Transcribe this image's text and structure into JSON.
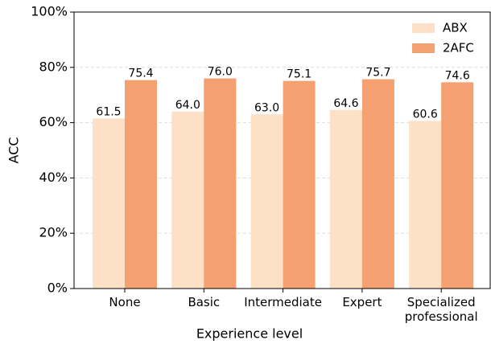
{
  "chart_data": {
    "type": "bar",
    "xlabel": "Experience level",
    "ylabel": "ACC",
    "categories": [
      "None",
      "Basic",
      "Intermediate",
      "Expert",
      "Specialized professional"
    ],
    "series": [
      {
        "name": "ABX",
        "color": "#fde0c5",
        "values": [
          61.5,
          64.0,
          63.0,
          64.6,
          60.6
        ],
        "value_labels": [
          "61.5",
          "64.0",
          "63.0",
          "64.6",
          "60.6"
        ]
      },
      {
        "name": "2AFC",
        "color": "#f4a070",
        "values": [
          75.4,
          76.0,
          75.1,
          75.7,
          74.6
        ],
        "value_labels": [
          "75.4",
          "76.0",
          "75.1",
          "75.7",
          "74.6"
        ]
      }
    ],
    "ylim": [
      0,
      100
    ],
    "yticks": [
      {
        "value": 0,
        "label": "0%"
      },
      {
        "value": 20,
        "label": "20%"
      },
      {
        "value": 40,
        "label": "40%"
      },
      {
        "value": 60,
        "label": "60%"
      },
      {
        "value": 80,
        "label": "80%"
      },
      {
        "value": 100,
        "label": "100%"
      }
    ],
    "grid": true,
    "legend": "upper right"
  }
}
